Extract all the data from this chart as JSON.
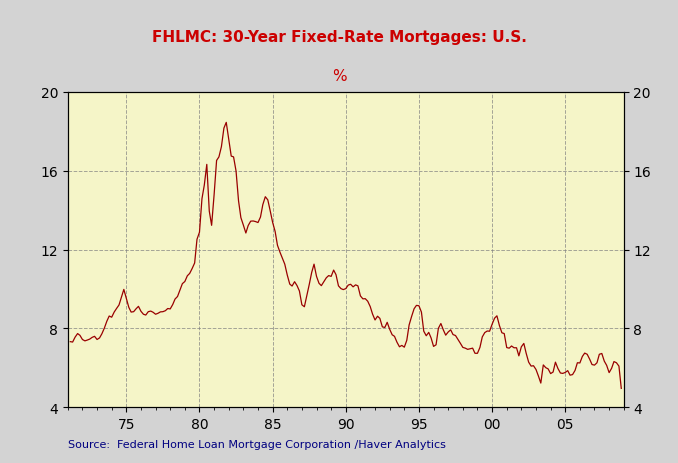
{
  "title": "FHLMC: 30-Year Fixed-Rate Mortgages: U.S.",
  "ylabel": "%",
  "source": "Source:  Federal Home Loan Mortgage Corporation /Haver Analytics",
  "title_color": "#cc0000",
  "ylabel_color": "#cc0000",
  "source_color": "#000080",
  "line_color": "#990000",
  "bg_color": "#f5f5c8",
  "outer_bg": "#d3d3d3",
  "ylim": [
    4,
    20
  ],
  "yticks": [
    4,
    8,
    12,
    16,
    20
  ],
  "xtick_labels": [
    "75",
    "80",
    "85",
    "90",
    "95",
    "00",
    "05"
  ],
  "xtick_years": [
    1975,
    1980,
    1985,
    1990,
    1995,
    2000,
    2005
  ],
  "data": [
    [
      1971.17,
      7.33
    ],
    [
      1971.33,
      7.31
    ],
    [
      1971.5,
      7.56
    ],
    [
      1971.67,
      7.74
    ],
    [
      1971.83,
      7.65
    ],
    [
      1972.0,
      7.44
    ],
    [
      1972.17,
      7.37
    ],
    [
      1972.33,
      7.41
    ],
    [
      1972.5,
      7.46
    ],
    [
      1972.67,
      7.55
    ],
    [
      1972.83,
      7.6
    ],
    [
      1973.0,
      7.44
    ],
    [
      1973.17,
      7.52
    ],
    [
      1973.33,
      7.73
    ],
    [
      1973.5,
      8.02
    ],
    [
      1973.67,
      8.37
    ],
    [
      1973.83,
      8.63
    ],
    [
      1974.0,
      8.57
    ],
    [
      1974.17,
      8.83
    ],
    [
      1974.33,
      9.01
    ],
    [
      1974.5,
      9.19
    ],
    [
      1974.67,
      9.59
    ],
    [
      1974.83,
      9.98
    ],
    [
      1975.0,
      9.52
    ],
    [
      1975.17,
      9.07
    ],
    [
      1975.33,
      8.83
    ],
    [
      1975.5,
      8.85
    ],
    [
      1975.67,
      9.0
    ],
    [
      1975.83,
      9.12
    ],
    [
      1976.0,
      8.87
    ],
    [
      1976.17,
      8.72
    ],
    [
      1976.33,
      8.68
    ],
    [
      1976.5,
      8.85
    ],
    [
      1976.67,
      8.88
    ],
    [
      1976.83,
      8.82
    ],
    [
      1977.0,
      8.72
    ],
    [
      1977.17,
      8.77
    ],
    [
      1977.33,
      8.84
    ],
    [
      1977.5,
      8.85
    ],
    [
      1977.67,
      8.9
    ],
    [
      1977.83,
      9.01
    ],
    [
      1978.0,
      8.99
    ],
    [
      1978.17,
      9.21
    ],
    [
      1978.33,
      9.49
    ],
    [
      1978.5,
      9.62
    ],
    [
      1978.67,
      9.95
    ],
    [
      1978.83,
      10.27
    ],
    [
      1979.0,
      10.38
    ],
    [
      1979.17,
      10.67
    ],
    [
      1979.33,
      10.79
    ],
    [
      1979.5,
      11.04
    ],
    [
      1979.67,
      11.32
    ],
    [
      1979.83,
      12.52
    ],
    [
      1980.0,
      12.88
    ],
    [
      1980.17,
      14.58
    ],
    [
      1980.33,
      15.27
    ],
    [
      1980.5,
      16.32
    ],
    [
      1980.67,
      13.95
    ],
    [
      1980.83,
      13.23
    ],
    [
      1981.0,
      14.78
    ],
    [
      1981.17,
      16.52
    ],
    [
      1981.33,
      16.7
    ],
    [
      1981.5,
      17.22
    ],
    [
      1981.67,
      18.16
    ],
    [
      1981.83,
      18.45
    ],
    [
      1982.0,
      17.6
    ],
    [
      1982.17,
      16.74
    ],
    [
      1982.33,
      16.7
    ],
    [
      1982.5,
      15.98
    ],
    [
      1982.67,
      14.47
    ],
    [
      1982.83,
      13.62
    ],
    [
      1983.0,
      13.24
    ],
    [
      1983.17,
      12.84
    ],
    [
      1983.33,
      13.22
    ],
    [
      1983.5,
      13.44
    ],
    [
      1983.67,
      13.45
    ],
    [
      1983.83,
      13.42
    ],
    [
      1984.0,
      13.37
    ],
    [
      1984.17,
      13.65
    ],
    [
      1984.33,
      14.28
    ],
    [
      1984.5,
      14.68
    ],
    [
      1984.67,
      14.52
    ],
    [
      1984.83,
      13.98
    ],
    [
      1985.0,
      13.38
    ],
    [
      1985.17,
      12.92
    ],
    [
      1985.33,
      12.22
    ],
    [
      1985.5,
      11.87
    ],
    [
      1985.67,
      11.56
    ],
    [
      1985.83,
      11.26
    ],
    [
      1986.0,
      10.71
    ],
    [
      1986.17,
      10.25
    ],
    [
      1986.33,
      10.15
    ],
    [
      1986.5,
      10.37
    ],
    [
      1986.67,
      10.17
    ],
    [
      1986.83,
      9.9
    ],
    [
      1987.0,
      9.2
    ],
    [
      1987.17,
      9.1
    ],
    [
      1987.33,
      9.64
    ],
    [
      1987.5,
      10.22
    ],
    [
      1987.67,
      10.84
    ],
    [
      1987.83,
      11.26
    ],
    [
      1988.0,
      10.64
    ],
    [
      1988.17,
      10.29
    ],
    [
      1988.33,
      10.17
    ],
    [
      1988.5,
      10.37
    ],
    [
      1988.67,
      10.57
    ],
    [
      1988.83,
      10.68
    ],
    [
      1989.0,
      10.64
    ],
    [
      1989.17,
      10.96
    ],
    [
      1989.33,
      10.73
    ],
    [
      1989.5,
      10.16
    ],
    [
      1989.67,
      10.02
    ],
    [
      1989.83,
      9.97
    ],
    [
      1990.0,
      10.02
    ],
    [
      1990.17,
      10.2
    ],
    [
      1990.33,
      10.24
    ],
    [
      1990.5,
      10.11
    ],
    [
      1990.67,
      10.21
    ],
    [
      1990.83,
      10.16
    ],
    [
      1991.0,
      9.65
    ],
    [
      1991.17,
      9.5
    ],
    [
      1991.33,
      9.51
    ],
    [
      1991.5,
      9.38
    ],
    [
      1991.67,
      9.11
    ],
    [
      1991.83,
      8.73
    ],
    [
      1992.0,
      8.43
    ],
    [
      1992.17,
      8.62
    ],
    [
      1992.33,
      8.51
    ],
    [
      1992.5,
      8.08
    ],
    [
      1992.67,
      8.05
    ],
    [
      1992.83,
      8.31
    ],
    [
      1993.0,
      7.96
    ],
    [
      1993.17,
      7.68
    ],
    [
      1993.33,
      7.6
    ],
    [
      1993.5,
      7.3
    ],
    [
      1993.67,
      7.07
    ],
    [
      1993.83,
      7.14
    ],
    [
      1994.0,
      7.05
    ],
    [
      1994.17,
      7.4
    ],
    [
      1994.33,
      8.18
    ],
    [
      1994.5,
      8.61
    ],
    [
      1994.67,
      9.0
    ],
    [
      1994.83,
      9.17
    ],
    [
      1995.0,
      9.15
    ],
    [
      1995.17,
      8.83
    ],
    [
      1995.33,
      7.86
    ],
    [
      1995.5,
      7.63
    ],
    [
      1995.67,
      7.8
    ],
    [
      1995.83,
      7.52
    ],
    [
      1996.0,
      7.09
    ],
    [
      1996.17,
      7.17
    ],
    [
      1996.33,
      8.01
    ],
    [
      1996.5,
      8.25
    ],
    [
      1996.67,
      7.92
    ],
    [
      1996.83,
      7.66
    ],
    [
      1997.0,
      7.82
    ],
    [
      1997.17,
      7.93
    ],
    [
      1997.33,
      7.69
    ],
    [
      1997.5,
      7.64
    ],
    [
      1997.67,
      7.44
    ],
    [
      1997.83,
      7.25
    ],
    [
      1998.0,
      7.04
    ],
    [
      1998.17,
      7.0
    ],
    [
      1998.33,
      6.94
    ],
    [
      1998.5,
      6.97
    ],
    [
      1998.67,
      7.0
    ],
    [
      1998.83,
      6.74
    ],
    [
      1999.0,
      6.74
    ],
    [
      1999.17,
      7.04
    ],
    [
      1999.33,
      7.57
    ],
    [
      1999.5,
      7.79
    ],
    [
      1999.67,
      7.87
    ],
    [
      1999.83,
      7.86
    ],
    [
      2000.0,
      8.21
    ],
    [
      2000.17,
      8.52
    ],
    [
      2000.33,
      8.64
    ],
    [
      2000.5,
      8.15
    ],
    [
      2000.67,
      7.78
    ],
    [
      2000.83,
      7.74
    ],
    [
      2001.0,
      7.03
    ],
    [
      2001.17,
      7.0
    ],
    [
      2001.33,
      7.11
    ],
    [
      2001.5,
      7.02
    ],
    [
      2001.67,
      7.02
    ],
    [
      2001.83,
      6.61
    ],
    [
      2002.0,
      7.07
    ],
    [
      2002.17,
      7.24
    ],
    [
      2002.33,
      6.74
    ],
    [
      2002.5,
      6.29
    ],
    [
      2002.67,
      6.09
    ],
    [
      2002.83,
      6.11
    ],
    [
      2003.0,
      5.92
    ],
    [
      2003.17,
      5.58
    ],
    [
      2003.33,
      5.23
    ],
    [
      2003.5,
      6.15
    ],
    [
      2003.67,
      6.01
    ],
    [
      2003.83,
      5.95
    ],
    [
      2004.0,
      5.71
    ],
    [
      2004.17,
      5.79
    ],
    [
      2004.33,
      6.29
    ],
    [
      2004.5,
      5.97
    ],
    [
      2004.67,
      5.74
    ],
    [
      2004.83,
      5.72
    ],
    [
      2005.0,
      5.77
    ],
    [
      2005.17,
      5.86
    ],
    [
      2005.33,
      5.63
    ],
    [
      2005.5,
      5.66
    ],
    [
      2005.67,
      5.87
    ],
    [
      2005.83,
      6.26
    ],
    [
      2006.0,
      6.25
    ],
    [
      2006.17,
      6.58
    ],
    [
      2006.33,
      6.75
    ],
    [
      2006.5,
      6.69
    ],
    [
      2006.67,
      6.44
    ],
    [
      2006.83,
      6.17
    ],
    [
      2007.0,
      6.14
    ],
    [
      2007.17,
      6.26
    ],
    [
      2007.33,
      6.69
    ],
    [
      2007.5,
      6.73
    ],
    [
      2007.67,
      6.34
    ],
    [
      2007.83,
      6.13
    ],
    [
      2008.0,
      5.76
    ],
    [
      2008.17,
      5.98
    ],
    [
      2008.33,
      6.32
    ],
    [
      2008.5,
      6.26
    ],
    [
      2008.67,
      6.09
    ],
    [
      2008.83,
      4.96
    ]
  ]
}
